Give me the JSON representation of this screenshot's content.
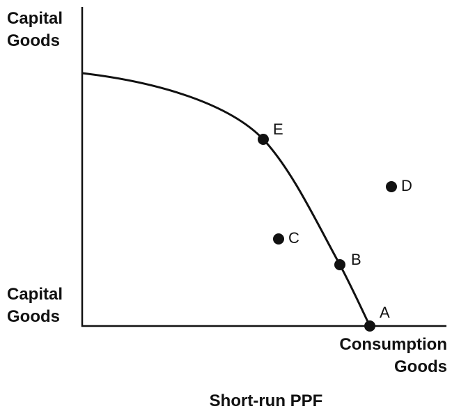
{
  "axes": {
    "y_top_label": [
      "Capital",
      "Goods"
    ],
    "y_bottom_label": [
      "Capital",
      "Goods"
    ],
    "x_label": [
      "Consumption",
      "Goods"
    ]
  },
  "caption": "Short-run PPF",
  "points": [
    {
      "label": "E"
    },
    {
      "label": "D"
    },
    {
      "label": "C"
    },
    {
      "label": "B"
    },
    {
      "label": "A"
    }
  ]
}
